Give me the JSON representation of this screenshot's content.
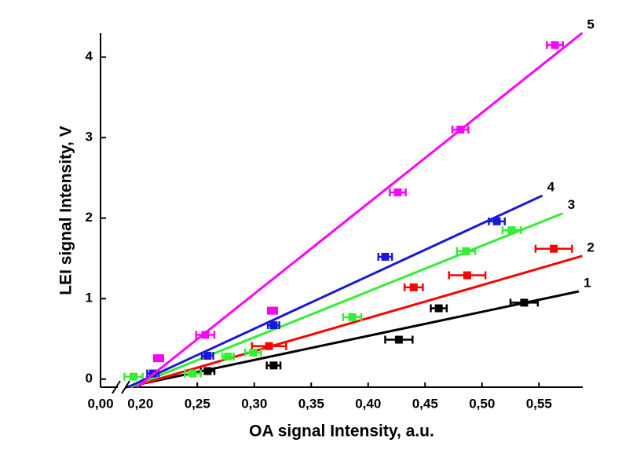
{
  "chart_data": {
    "type": "scatter",
    "x_label": "OA signal Intensity, a.u.",
    "y_label": "LEI signal Intensity, V",
    "xlim": [
      0,
      0.59
    ],
    "x_break": [
      0.02,
      0.185
    ],
    "xticks": [
      {
        "value": 0,
        "label": "0,00"
      },
      {
        "value": 0.2,
        "label": "0,20"
      },
      {
        "value": 0.25,
        "label": "0,25"
      },
      {
        "value": 0.3,
        "label": "0,30"
      },
      {
        "value": 0.35,
        "label": "0,35"
      },
      {
        "value": 0.4,
        "label": "0,40"
      },
      {
        "value": 0.45,
        "label": "0,45"
      },
      {
        "value": 0.5,
        "label": "0,50"
      },
      {
        "value": 0.55,
        "label": "0,55"
      }
    ],
    "ylim": [
      -0.1,
      4.3
    ],
    "yticks": [
      0,
      1,
      2,
      3,
      4
    ],
    "series": [
      {
        "name": "1",
        "color": "#000000",
        "x": [
          0.259,
          0.317,
          0.427,
          0.462,
          0.537
        ],
        "values": [
          0.1,
          0.17,
          0.49,
          0.88,
          0.95
        ],
        "x_errors": [
          0.006,
          0.006,
          0.012,
          0.007,
          0.012
        ],
        "fit_x": [
          0.187,
          0.585
        ],
        "fit_y": [
          -0.1,
          1.09
        ]
      },
      {
        "name": "2",
        "color": "#ff0000",
        "x": [
          0.313,
          0.44,
          0.487,
          0.563
        ],
        "values": [
          0.41,
          1.14,
          1.29,
          1.62
        ],
        "x_errors": [
          0.015,
          0.008,
          0.016,
          0.016
        ],
        "fit_x": [
          0.191,
          0.588
        ],
        "fit_y": [
          -0.1,
          1.53
        ]
      },
      {
        "name": "3",
        "color": "#33ee33",
        "x": [
          0.194,
          0.246,
          0.277,
          0.299,
          0.386,
          0.486,
          0.526
        ],
        "values": [
          0.03,
          0.07,
          0.28,
          0.33,
          0.77,
          1.59,
          1.85
        ],
        "x_errors": [
          0.008,
          0.007,
          0.005,
          0.007,
          0.008,
          0.008,
          0.008
        ],
        "fit_x": [
          0.191,
          0.571
        ],
        "fit_y": [
          -0.1,
          2.06
        ]
      },
      {
        "name": "4",
        "color": "#1a1ad6",
        "x": [
          0.211,
          0.259,
          0.317,
          0.415,
          0.513
        ],
        "values": [
          0.07,
          0.29,
          0.67,
          1.52,
          1.96
        ],
        "x_errors": [
          0.005,
          0.005,
          0.005,
          0.006,
          0.007
        ],
        "fit_x": [
          0.189,
          0.553
        ],
        "fit_y": [
          -0.1,
          2.28
        ]
      },
      {
        "name": "5",
        "color": "#ff00ff",
        "x": [
          0.216,
          0.257,
          0.316,
          0.426,
          0.481,
          0.564
        ],
        "values": [
          0.26,
          0.55,
          0.85,
          2.32,
          3.1,
          4.15
        ],
        "x_errors": [
          0.004,
          0.008,
          0.004,
          0.007,
          0.007,
          0.007
        ],
        "fit_x": [
          0.197,
          0.588
        ],
        "fit_y": [
          -0.1,
          4.3
        ]
      }
    ]
  }
}
